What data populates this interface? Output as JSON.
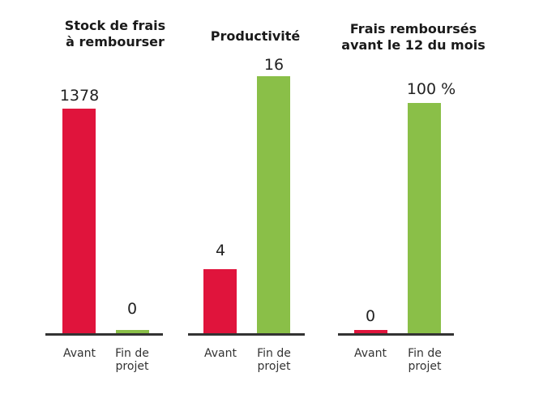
{
  "colors": {
    "before": "#e0143c",
    "after": "#8abf48",
    "axis": "#333333"
  },
  "chart_data": [
    {
      "type": "bar",
      "title": "Stock de frais\nà rembourser",
      "categories": [
        "Avant",
        "Fin de\nprojet"
      ],
      "values": [
        1378,
        0
      ],
      "value_labels": [
        "1378",
        "0"
      ],
      "ylim": [
        0,
        1378
      ]
    },
    {
      "type": "bar",
      "title": "Productivité",
      "categories": [
        "Avant",
        "Fin de\nprojet"
      ],
      "values": [
        4,
        16
      ],
      "value_labels": [
        "4",
        "16"
      ],
      "ylim": [
        0,
        16
      ]
    },
    {
      "type": "bar",
      "title": "Frais remboursés\navant le 12 du mois",
      "categories": [
        "Avant",
        "Fin de\nprojet"
      ],
      "values": [
        0,
        100
      ],
      "value_labels": [
        "0",
        "100 %"
      ],
      "ylim": [
        0,
        100
      ]
    }
  ]
}
